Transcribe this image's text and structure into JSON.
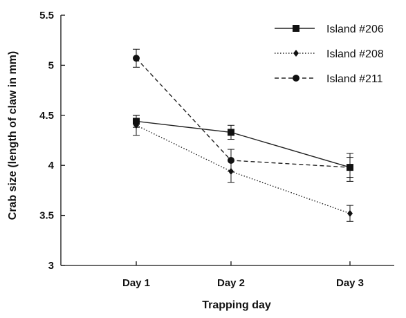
{
  "chart_data": {
    "type": "line",
    "title": "",
    "xlabel": "Trapping day",
    "ylabel": "Crab size (length of claw in mm)",
    "categories": [
      "Day 1",
      "Day 2",
      "Day 3"
    ],
    "ylim": [
      3,
      5.5
    ],
    "yticks": [
      "3",
      "3.5",
      "4",
      "4.5",
      "5",
      "5.5"
    ],
    "grid": false,
    "legend_position": "top-right",
    "series": [
      {
        "name": "Island #206",
        "values": [
          4.44,
          4.33,
          3.98
        ],
        "errors": [
          0.06,
          0.07,
          0.14
        ],
        "marker": "square",
        "line_style": "solid",
        "color": "#222222"
      },
      {
        "name": "Island #208",
        "values": [
          4.4,
          3.94,
          3.52
        ],
        "errors": [
          0.1,
          0.11,
          0.08
        ],
        "marker": "diamond",
        "line_style": "dotted",
        "color": "#222222"
      },
      {
        "name": "Island #211",
        "values": [
          5.07,
          4.05,
          3.98
        ],
        "errors": [
          0.09,
          0.11,
          0.1
        ],
        "marker": "circle",
        "line_style": "dashed",
        "color": "#222222"
      }
    ]
  }
}
